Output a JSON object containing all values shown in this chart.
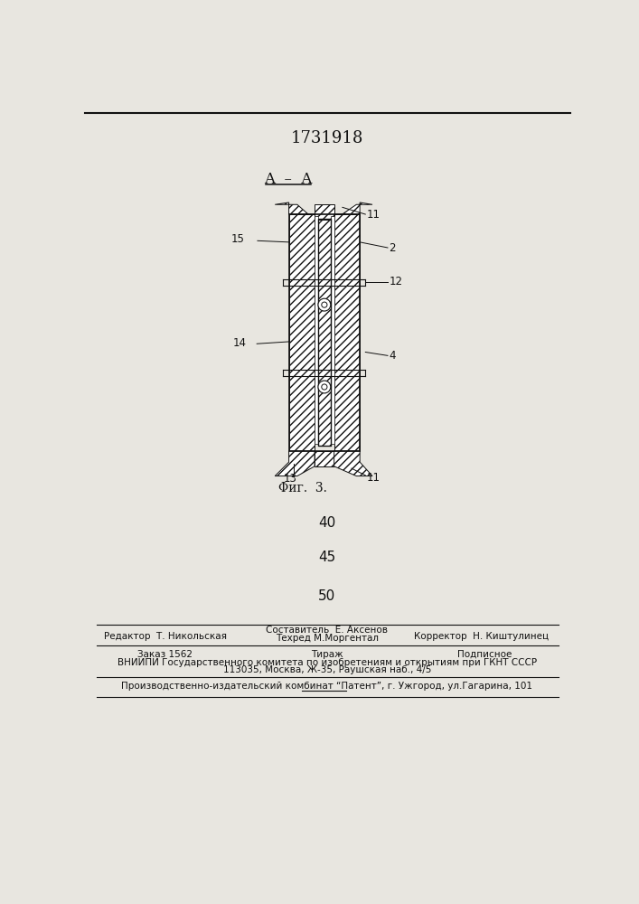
{
  "title_number": "1731918",
  "bg_color": "#e8e6e0",
  "line_color": "#111111",
  "footer_line1_left": "Редактор  Т. Никольская",
  "footer_line1_center": "Составитель  Е. Аксенов",
  "footer_line2_center": "Техред М.Моргентал",
  "footer_line1_right": "Корректор  Н. Киштулинец",
  "footer_order": "Заказ 1562",
  "footer_tirazh": "Тираж",
  "footer_podp": "Подписное",
  "footer_vniip": "ВНИИПИ Государственного комитета по изобретениям и открытиям при ГКНТ СССР",
  "footer_addr": "113035, Москва, Ж-35, Раушская наб., 4/5",
  "footer_producer": "Производственно-издательский комбинат “Патент”, г. Ужгород, ул.Гагарина, 101"
}
